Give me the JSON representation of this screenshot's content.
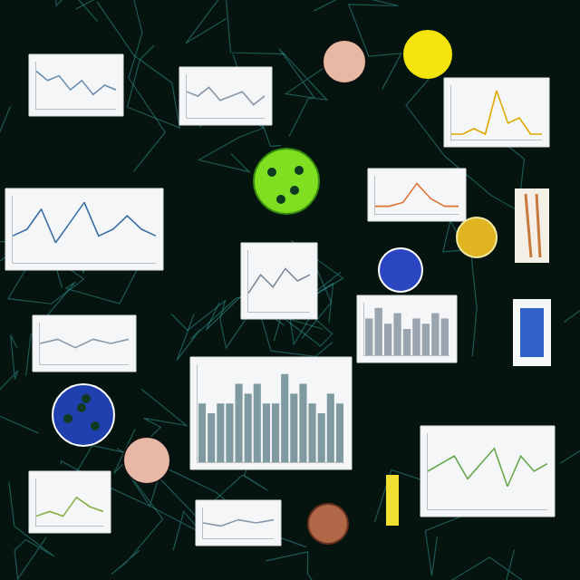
{
  "chart_data": [
    {
      "type": "line",
      "color": "#6a8fb0",
      "values": [
        8,
        6,
        7,
        4,
        6,
        3,
        5,
        4
      ],
      "ylim": [
        0,
        10
      ],
      "tick_labels": false
    },
    {
      "type": "line",
      "color": "#8899aa",
      "values": [
        6,
        5,
        7,
        4,
        5,
        6,
        3,
        5
      ],
      "ylim": [
        0,
        10
      ],
      "tick_labels": false
    },
    {
      "type": "line",
      "color": "#e0a800",
      "values": [
        1,
        1,
        2,
        1,
        9,
        3,
        4,
        1,
        1
      ],
      "ylim": [
        0,
        10
      ],
      "tick_labels": false
    },
    {
      "type": "line",
      "color": "#e07030",
      "values": [
        2,
        2,
        3,
        8,
        4,
        2,
        2
      ],
      "ylim": [
        0,
        10
      ],
      "tick_labels": false
    },
    {
      "type": "line",
      "color": "#3a6ea5",
      "values": [
        4,
        5,
        8,
        3,
        6,
        9,
        4,
        5,
        7,
        5,
        4
      ],
      "ylim": [
        0,
        10
      ],
      "tick_labels": false
    },
    {
      "type": "line",
      "color": "#7a8a9a",
      "values": [
        3,
        6,
        4,
        7,
        5,
        6
      ],
      "ylim": [
        0,
        10
      ],
      "tick_labels": false
    },
    {
      "type": "bar",
      "color": "#9aa4ae",
      "values": [
        7,
        9,
        6,
        8,
        5,
        7,
        6,
        8,
        7
      ],
      "ylim": [
        0,
        10
      ],
      "tick_labels": false
    },
    {
      "type": "line",
      "color": "#8899aa",
      "values": [
        5,
        6,
        4,
        6,
        5,
        6
      ],
      "ylim": [
        0,
        10
      ],
      "tick_labels": false
    },
    {
      "type": "bar",
      "color": "#7f9aa0",
      "values": [
        6,
        5,
        6,
        6,
        8,
        7,
        8,
        6,
        6,
        9,
        7,
        8,
        6,
        5,
        7,
        6
      ],
      "ylim": [
        0,
        10
      ],
      "tick_labels": false
    },
    {
      "type": "line",
      "color": "#6aa84f",
      "values": [
        5,
        6,
        7,
        4,
        6,
        8,
        3,
        7,
        5,
        6
      ],
      "ylim": [
        0,
        10
      ],
      "tick_labels": false
    },
    {
      "type": "line",
      "color": "#88b048",
      "values": [
        2,
        3,
        2,
        6,
        4,
        3
      ],
      "ylim": [
        0,
        10
      ],
      "tick_labels": false
    },
    {
      "type": "line",
      "color": "#8899aa",
      "values": [
        5,
        4,
        6,
        5,
        6
      ],
      "ylim": [
        0,
        10
      ],
      "tick_labels": false
    }
  ]
}
